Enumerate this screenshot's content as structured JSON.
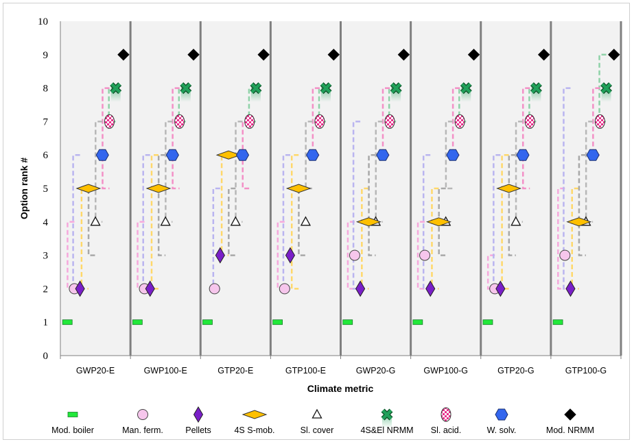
{
  "chart_data": {
    "type": "scatter",
    "title": "",
    "xlabel": "Climate metric",
    "ylabel": "Option rank #",
    "ylim": [
      0,
      10
    ],
    "yticks": [
      0,
      1,
      2,
      3,
      4,
      5,
      6,
      7,
      8,
      9,
      10
    ],
    "grid": false,
    "legend_position": "bottom",
    "categories": [
      "GWP20-E",
      "GWP100-E",
      "GTP20-E",
      "GTP100-E",
      "GWP20-G",
      "GWP100-G",
      "GTP20-G",
      "GTP100-G"
    ],
    "series": [
      {
        "name": "Mod. boiler",
        "marker": "bar",
        "color": "#22e83a",
        "values": [
          1,
          1,
          1,
          1,
          1,
          1,
          1,
          1
        ],
        "ranges": [
          [
            1,
            1
          ],
          [
            1,
            1
          ],
          [
            1,
            1
          ],
          [
            1,
            1
          ],
          [
            1,
            1
          ],
          [
            1,
            1
          ],
          [
            1,
            1
          ],
          [
            1,
            1
          ]
        ]
      },
      {
        "name": "Man. ferm.",
        "marker": "circle",
        "color": "#f6c6ec",
        "values": [
          2,
          2,
          2,
          2,
          3,
          3,
          2,
          3
        ],
        "ranges": [
          [
            2,
            4
          ],
          [
            2,
            4
          ],
          [
            2,
            2
          ],
          [
            2,
            4
          ],
          [
            2,
            4
          ],
          [
            2,
            4
          ],
          [
            2,
            3
          ],
          [
            2,
            5
          ]
        ]
      },
      {
        "name": "Pellets",
        "marker": "diamond-narrow",
        "color": "#7a1fc8",
        "values": [
          2,
          2,
          3,
          3,
          2,
          2,
          2,
          2
        ],
        "ranges": [
          [
            2,
            6
          ],
          [
            2,
            6
          ],
          [
            2,
            5
          ],
          [
            2,
            6
          ],
          [
            2,
            7
          ],
          [
            2,
            6
          ],
          [
            2,
            6
          ],
          [
            2,
            8
          ]
        ]
      },
      {
        "name": "4S S-mob.",
        "marker": "diamond-wide",
        "color": "#ffc000",
        "values": [
          5,
          5,
          6,
          5,
          4,
          4,
          5,
          4
        ],
        "ranges": [
          [
            2,
            5
          ],
          [
            2,
            6
          ],
          [
            3,
            6
          ],
          [
            2,
            6
          ],
          [
            2,
            5
          ],
          [
            2,
            5
          ],
          [
            2,
            6
          ],
          [
            2,
            5
          ]
        ]
      },
      {
        "name": "Sl. cover",
        "marker": "triangle",
        "color": "#ffffff",
        "values": [
          4,
          4,
          4,
          4,
          4,
          4,
          4,
          4
        ],
        "ranges": [
          [
            3,
            5
          ],
          [
            3,
            6
          ],
          [
            3,
            5
          ],
          [
            3,
            5
          ],
          [
            3,
            6
          ],
          [
            3,
            5
          ],
          [
            3,
            6
          ],
          [
            3,
            6
          ]
        ]
      },
      {
        "name": "4S&El NRMM",
        "marker": "x",
        "color": "#21a05a",
        "values": [
          8,
          8,
          8,
          8,
          8,
          8,
          8,
          8
        ],
        "ranges": [
          [
            7,
            8
          ],
          [
            7,
            8
          ],
          [
            7,
            8
          ],
          [
            7,
            8
          ],
          [
            7,
            8
          ],
          [
            7,
            8
          ],
          [
            7,
            8
          ],
          [
            7,
            9
          ]
        ]
      },
      {
        "name": "Sl. acid.",
        "marker": "checker-ellipse",
        "color": "#e8308c",
        "values": [
          7,
          7,
          7,
          7,
          7,
          7,
          7,
          7
        ],
        "ranges": [
          [
            5,
            8
          ],
          [
            5,
            8
          ],
          [
            5,
            7
          ],
          [
            6,
            8
          ],
          [
            6,
            8
          ],
          [
            6,
            8
          ],
          [
            5,
            8
          ],
          [
            6,
            8
          ]
        ]
      },
      {
        "name": "W. solv.",
        "marker": "hexagon",
        "color": "#3366ee",
        "values": [
          6,
          6,
          6,
          6,
          6,
          6,
          6,
          6
        ],
        "ranges": [
          [
            4,
            7
          ],
          [
            4,
            7
          ],
          [
            4,
            7
          ],
          [
            5,
            7
          ],
          [
            4,
            7
          ],
          [
            5,
            7
          ],
          [
            4,
            7
          ],
          [
            4,
            7
          ]
        ]
      },
      {
        "name": "Mod. NRMM",
        "marker": "diamond-black",
        "color": "#000000",
        "values": [
          9,
          9,
          9,
          9,
          9,
          9,
          9,
          9
        ],
        "ranges": [
          [
            9,
            9
          ],
          [
            9,
            9
          ],
          [
            9,
            9
          ],
          [
            9,
            9
          ],
          [
            9,
            9
          ],
          [
            9,
            9
          ],
          [
            9,
            9
          ],
          [
            9,
            9
          ]
        ]
      }
    ]
  }
}
